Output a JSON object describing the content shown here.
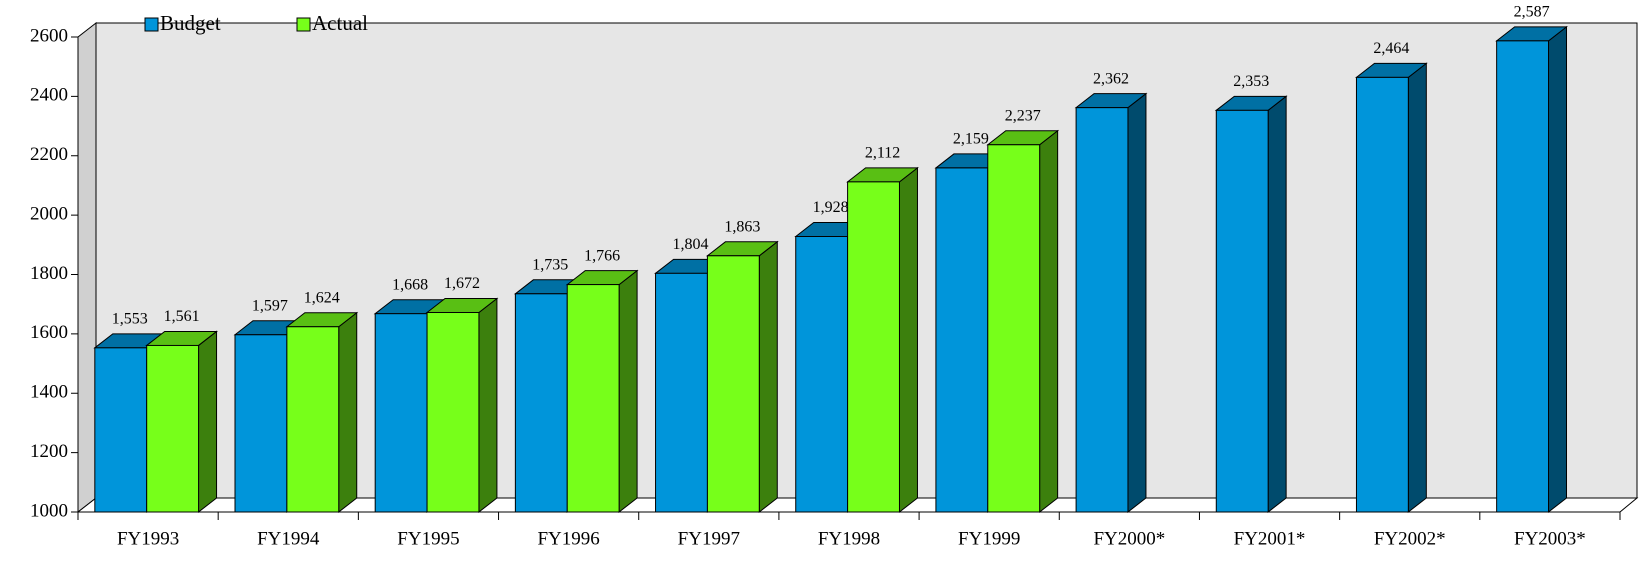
{
  "chart_data": {
    "type": "bar3d",
    "categories": [
      "FY1993",
      "FY1994",
      "FY1995",
      "FY1996",
      "FY1997",
      "FY1998",
      "FY1999",
      "FY2000*",
      "FY2001*",
      "FY2002*",
      "FY2003*"
    ],
    "series": [
      {
        "name": "Budget",
        "color": "#0095da",
        "values": [
          1553,
          1597,
          1668,
          1735,
          1804,
          1928,
          2159,
          2362,
          2353,
          2464,
          2587
        ],
        "value_labels": [
          "1,553",
          "1,597",
          "1,668",
          "1,735",
          "1,804",
          "1,928",
          "2,159",
          "2,362",
          "2,353",
          "2,464",
          "2,587"
        ]
      },
      {
        "name": "Actual",
        "color": "#77ff1a",
        "values": [
          1561,
          1624,
          1672,
          1766,
          1863,
          2112,
          2237,
          null,
          null,
          null,
          null
        ],
        "value_labels": [
          "1,561",
          "1,624",
          "1,672",
          "1,766",
          "1,863",
          "2,112",
          "2,237",
          null,
          null,
          null,
          null
        ]
      }
    ],
    "ylim": [
      1000,
      2600
    ],
    "yticks": [
      1000,
      1200,
      1400,
      1600,
      1800,
      2000,
      2200,
      2400,
      2600
    ],
    "legend": "top-left"
  }
}
